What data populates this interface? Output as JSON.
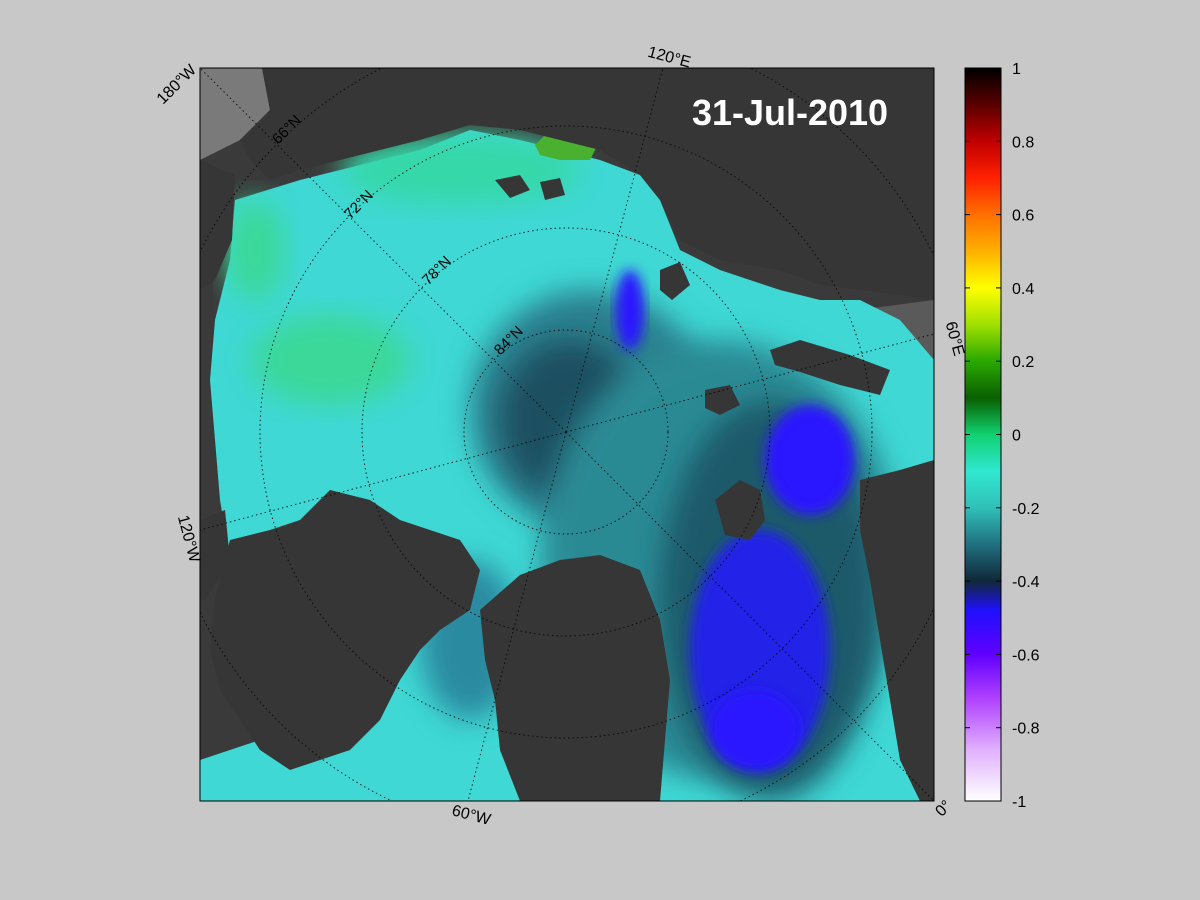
{
  "map": {
    "date_label": "31-Jul-2010",
    "lon_labels": {
      "w180": "180°W",
      "e120": "120°E",
      "e60": "60°E",
      "e0": "0°",
      "w60": "60°W",
      "w120": "120°W"
    },
    "lat_labels": {
      "n66": "66°N",
      "n72": "72°N",
      "n78": "78°N",
      "n84": "84°N"
    },
    "colors": {
      "land": "#333333",
      "frame_bg": "#c8c8c8",
      "ice_cyan": "#3fe0dc",
      "ice_green": "#3ad89a",
      "deep_teal": "#1f5f6e",
      "deep_blue": "#2a1aff"
    }
  },
  "colorbar": {
    "ticks": [
      "1",
      "0.8",
      "0.6",
      "0.4",
      "0.2",
      "0",
      "-0.2",
      "-0.4",
      "-0.6",
      "-0.8",
      "-1"
    ],
    "range": [
      -1,
      1
    ]
  }
}
